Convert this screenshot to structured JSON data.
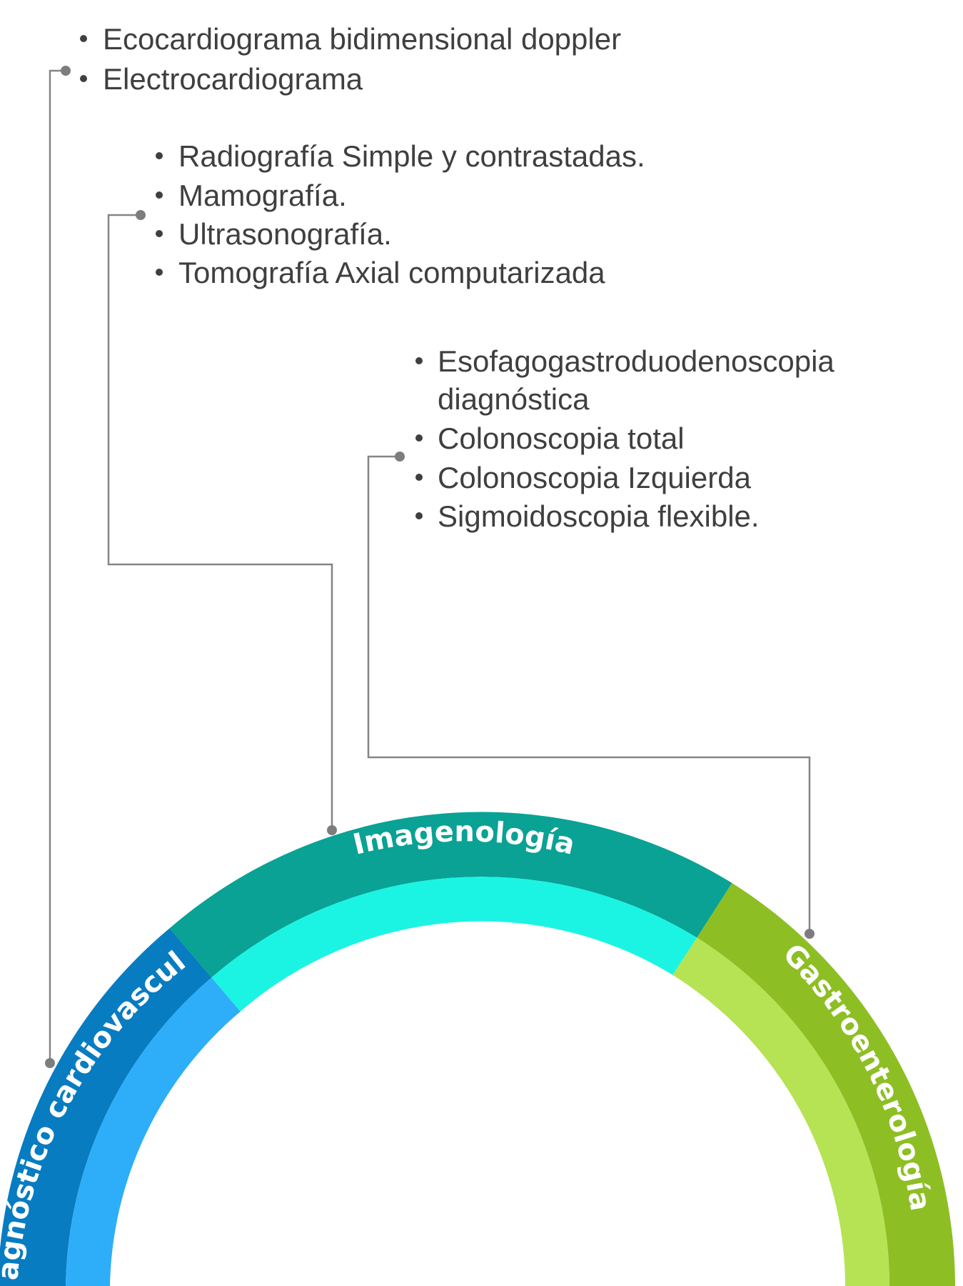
{
  "groups": [
    {
      "title": "Diagnóstico cardiovascular",
      "items": [
        "Ecocardiograma bidimensional doppler",
        "Electrocardiograma"
      ],
      "color_outer": "#077cc1",
      "color_inner": "#2eaef8"
    },
    {
      "title": "Imagenología",
      "items": [
        "Radiografía Simple y contrastadas.",
        "Mamografía.",
        "Ultrasonografía.",
        "Tomografía Axial computarizada"
      ],
      "color_outer": "#09a295",
      "color_inner": "#1bf4e3"
    },
    {
      "title": "Gastroenterología",
      "items": [
        "Esofagogastroduodenoscopia diagnóstica",
        "Colonoscopia total",
        "Colonoscopia Izquierda",
        "Sigmoidoscopia flexible."
      ],
      "item_lines": [
        [
          "Esofagogastroduodenoscopia",
          "diagnóstica"
        ],
        [
          "Colonoscopia total"
        ],
        [
          "Colonoscopia Izquierda"
        ],
        [
          "Sigmoidoscopia flexible."
        ]
      ],
      "color_outer": "#8dbf24",
      "color_inner": "#b5e354"
    }
  ],
  "connector_color": "#858585",
  "text_color": "#3f3f3f"
}
